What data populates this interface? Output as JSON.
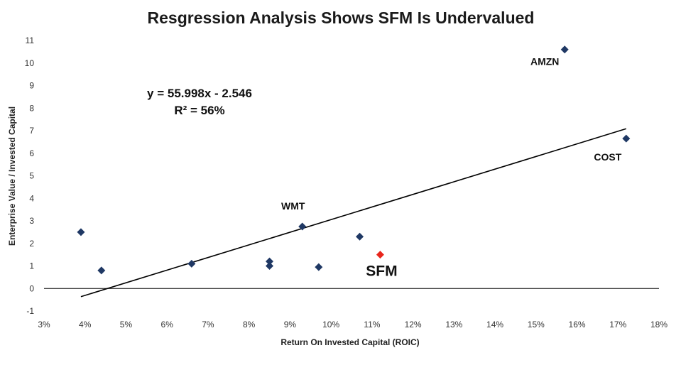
{
  "chart_data": {
    "type": "scatter",
    "title": "Resgression Analysis Shows SFM Is Undervalued",
    "xlabel": "Return On Invested Capital (ROIC)",
    "ylabel": "Enterprise Value / Invested Capital",
    "xlim": [
      0.03,
      0.18
    ],
    "ylim": [
      -1,
      11
    ],
    "x_ticks": [
      "3%",
      "4%",
      "5%",
      "6%",
      "7%",
      "8%",
      "9%",
      "10%",
      "11%",
      "12%",
      "13%",
      "14%",
      "15%",
      "16%",
      "17%",
      "18%"
    ],
    "y_ticks": [
      "-1",
      "0",
      "1",
      "2",
      "3",
      "4",
      "5",
      "6",
      "7",
      "8",
      "9",
      "10",
      "11"
    ],
    "grid": false,
    "points": [
      {
        "x": 0.039,
        "y": 2.5,
        "label": "",
        "color": "#1f3864"
      },
      {
        "x": 0.044,
        "y": 0.8,
        "label": "",
        "color": "#1f3864"
      },
      {
        "x": 0.066,
        "y": 1.1,
        "label": "",
        "color": "#1f3864"
      },
      {
        "x": 0.085,
        "y": 1.2,
        "label": "",
        "color": "#1f3864"
      },
      {
        "x": 0.085,
        "y": 1.0,
        "label": "",
        "color": "#1f3864"
      },
      {
        "x": 0.093,
        "y": 2.75,
        "label": "WMT",
        "color": "#1f3864"
      },
      {
        "x": 0.097,
        "y": 0.95,
        "label": "",
        "color": "#1f3864"
      },
      {
        "x": 0.107,
        "y": 2.3,
        "label": "",
        "color": "#1f3864"
      },
      {
        "x": 0.112,
        "y": 1.5,
        "label": "SFM",
        "color": "#e8261c"
      },
      {
        "x": 0.157,
        "y": 10.6,
        "label": "AMZN",
        "color": "#1f3864"
      },
      {
        "x": 0.172,
        "y": 6.65,
        "label": "COST",
        "color": "#1f3864"
      }
    ],
    "trendline": {
      "slope": 55.998,
      "intercept": -2.546,
      "x_range": [
        0.039,
        0.172
      ]
    },
    "annotations": [
      "y = 55.998x - 2.546",
      "R² = 56%"
    ]
  }
}
